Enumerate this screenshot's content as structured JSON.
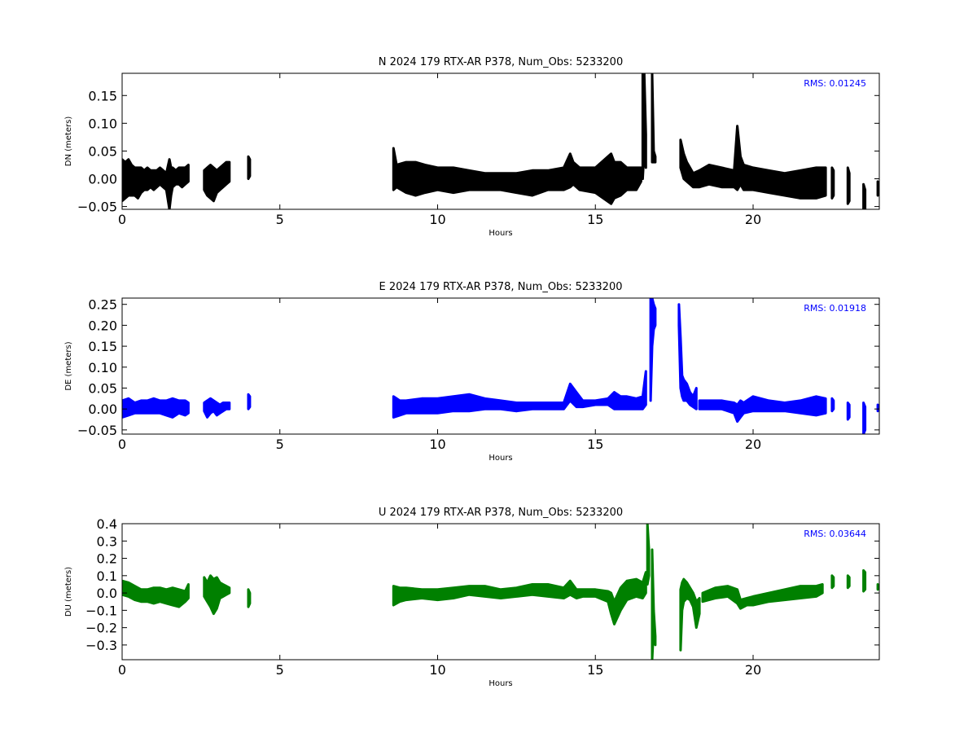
{
  "chart_data": [
    {
      "type": "line",
      "title": "N 2024 179 RTX-AR  P378, Num_Obs: 5233200",
      "xlabel": "Hours",
      "ylabel": "DN (meters)",
      "xlim": [
        0,
        24
      ],
      "ylim": [
        -0.055,
        0.19
      ],
      "xticks": [
        0,
        5,
        10,
        15,
        20
      ],
      "yticks": [
        -0.05,
        0.0,
        0.05,
        0.1,
        0.15
      ],
      "ytick_labels": [
        "−0.05",
        "0.00",
        "0.05",
        "0.10",
        "0.15"
      ],
      "rms_label": "RMS:  0.01245",
      "color": "#000000",
      "series": [
        {
          "x": [
            0.0,
            0.1,
            0.2,
            0.3,
            0.4,
            0.5,
            0.6,
            0.7,
            0.8,
            0.9,
            1.0,
            1.1,
            1.2,
            1.3,
            1.4,
            1.5,
            1.55,
            1.6,
            1.7,
            1.8,
            1.9,
            2.0,
            2.1
          ],
          "low": [
            -0.04,
            -0.035,
            -0.03,
            -0.03,
            -0.03,
            -0.035,
            -0.025,
            -0.02,
            -0.02,
            -0.015,
            -0.02,
            -0.015,
            -0.01,
            -0.015,
            -0.02,
            -0.055,
            -0.03,
            -0.015,
            -0.01,
            -0.01,
            -0.015,
            -0.01,
            -0.005
          ],
          "high": [
            0.035,
            0.03,
            0.035,
            0.025,
            0.02,
            0.02,
            0.02,
            0.015,
            0.02,
            0.015,
            0.015,
            0.015,
            0.02,
            0.015,
            0.01,
            0.035,
            0.02,
            0.02,
            0.015,
            0.02,
            0.02,
            0.02,
            0.025
          ]
        },
        {
          "x": [
            2.6,
            2.7,
            2.8,
            2.9,
            3.0,
            3.1,
            3.2,
            3.3,
            3.4
          ],
          "low": [
            -0.02,
            -0.03,
            -0.035,
            -0.04,
            -0.025,
            -0.02,
            -0.015,
            -0.01,
            -0.005
          ],
          "high": [
            0.015,
            0.02,
            0.025,
            0.02,
            0.015,
            0.02,
            0.025,
            0.03,
            0.03
          ]
        },
        {
          "x": [
            4.0,
            4.05
          ],
          "low": [
            0.0,
            0.005
          ],
          "high": [
            0.04,
            0.035
          ]
        },
        {
          "x": [
            8.6,
            8.7,
            9.0,
            9.3,
            9.6,
            10.0,
            10.5,
            11.0,
            11.5,
            12.0,
            12.5,
            13.0,
            13.5,
            14.0,
            14.2,
            14.3,
            14.5,
            15.0,
            15.5,
            15.6,
            15.8,
            16.0,
            16.3,
            16.45
          ],
          "low": [
            -0.02,
            -0.015,
            -0.025,
            -0.03,
            -0.025,
            -0.02,
            -0.025,
            -0.02,
            -0.02,
            -0.02,
            -0.025,
            -0.03,
            -0.02,
            -0.02,
            -0.015,
            -0.01,
            -0.02,
            -0.025,
            -0.045,
            -0.035,
            -0.03,
            -0.02,
            -0.02,
            -0.005
          ],
          "high": [
            0.055,
            0.025,
            0.03,
            0.03,
            0.025,
            0.02,
            0.02,
            0.015,
            0.01,
            0.01,
            0.01,
            0.015,
            0.015,
            0.02,
            0.045,
            0.03,
            0.02,
            0.02,
            0.045,
            0.03,
            0.03,
            0.02,
            0.02,
            0.02
          ]
        },
        {
          "x": [
            16.5,
            16.55,
            16.6
          ],
          "low": [
            0.0,
            0.05,
            0.02
          ],
          "high": [
            0.19,
            0.19,
            0.08
          ]
        },
        {
          "x": [
            16.8,
            16.85,
            16.9
          ],
          "low": [
            0.03,
            0.03,
            0.03
          ],
          "high": [
            0.19,
            0.05,
            0.04
          ]
        },
        {
          "x": [
            17.7,
            17.8,
            17.9,
            18.0,
            18.1,
            18.3,
            18.6,
            19.0,
            19.4,
            19.5,
            19.6,
            19.7,
            20.0,
            20.5,
            21.0,
            21.5,
            22.0,
            22.3
          ],
          "low": [
            0.02,
            0.0,
            -0.005,
            -0.01,
            -0.015,
            -0.015,
            -0.01,
            -0.015,
            -0.015,
            -0.02,
            -0.01,
            -0.02,
            -0.02,
            -0.025,
            -0.03,
            -0.035,
            -0.035,
            -0.03
          ],
          "high": [
            0.07,
            0.045,
            0.03,
            0.02,
            0.01,
            0.015,
            0.025,
            0.02,
            0.015,
            0.095,
            0.04,
            0.025,
            0.02,
            0.015,
            0.01,
            0.015,
            0.02,
            0.02
          ]
        },
        {
          "x": [
            22.5,
            22.55
          ],
          "low": [
            -0.035,
            -0.03
          ],
          "high": [
            0.02,
            0.015
          ]
        },
        {
          "x": [
            23.0,
            23.05
          ],
          "low": [
            -0.045,
            -0.04
          ],
          "high": [
            0.02,
            0.01
          ]
        },
        {
          "x": [
            23.5,
            23.55
          ],
          "low": [
            -0.055,
            -0.055
          ],
          "high": [
            -0.01,
            -0.02
          ]
        },
        {
          "x": [
            23.95,
            24.0
          ],
          "low": [
            -0.03,
            -0.025
          ],
          "high": [
            -0.005,
            -0.01
          ]
        }
      ]
    },
    {
      "type": "line",
      "title": "E 2024 179 RTX-AR  P378, Num_Obs: 5233200",
      "xlabel": "Hours",
      "ylabel": "DE (meters)",
      "xlim": [
        0,
        24
      ],
      "ylim": [
        -0.06,
        0.265
      ],
      "xticks": [
        0,
        5,
        10,
        15,
        20
      ],
      "yticks": [
        -0.05,
        0.0,
        0.05,
        0.1,
        0.15,
        0.2,
        0.25
      ],
      "ytick_labels": [
        "−0.05",
        "0.00",
        "0.05",
        "0.10",
        "0.15",
        "0.20",
        "0.25"
      ],
      "rms_label": "RMS:  0.01918",
      "color": "#0000ff",
      "series": [
        {
          "x": [
            0.0,
            0.2,
            0.4,
            0.6,
            0.8,
            1.0,
            1.2,
            1.4,
            1.6,
            1.8,
            2.0,
            2.1
          ],
          "low": [
            -0.02,
            -0.015,
            -0.01,
            -0.01,
            -0.01,
            -0.01,
            -0.01,
            -0.015,
            -0.02,
            -0.01,
            -0.015,
            -0.01
          ],
          "high": [
            0.02,
            0.025,
            0.015,
            0.02,
            0.02,
            0.025,
            0.02,
            0.02,
            0.025,
            0.02,
            0.02,
            0.015
          ]
        },
        {
          "x": [
            2.6,
            2.7,
            2.8,
            2.9,
            3.0,
            3.1,
            3.2,
            3.3,
            3.4
          ],
          "low": [
            -0.005,
            -0.02,
            -0.01,
            -0.005,
            -0.015,
            -0.01,
            -0.005,
            0.0,
            0.0
          ],
          "high": [
            0.015,
            0.02,
            0.025,
            0.02,
            0.015,
            0.01,
            0.015,
            0.015,
            0.015
          ]
        },
        {
          "x": [
            4.0,
            4.05
          ],
          "low": [
            0.0,
            0.005
          ],
          "high": [
            0.035,
            0.03
          ]
        },
        {
          "x": [
            8.6,
            8.8,
            9.0,
            9.5,
            10.0,
            10.5,
            11.0,
            11.5,
            12.0,
            12.5,
            13.0,
            13.5,
            14.0,
            14.2,
            14.4,
            14.6,
            15.0,
            15.4,
            15.6,
            15.8,
            16.0,
            16.3,
            16.5,
            16.6
          ],
          "low": [
            -0.02,
            -0.015,
            -0.01,
            -0.01,
            -0.01,
            -0.005,
            -0.005,
            0.0,
            0.0,
            -0.005,
            0.0,
            0.0,
            0.0,
            0.02,
            0.005,
            0.005,
            0.01,
            0.01,
            0.0,
            0.0,
            0.0,
            0.0,
            0.0,
            0.01
          ],
          "high": [
            0.03,
            0.02,
            0.02,
            0.025,
            0.025,
            0.03,
            0.035,
            0.025,
            0.02,
            0.015,
            0.015,
            0.015,
            0.015,
            0.06,
            0.04,
            0.02,
            0.02,
            0.025,
            0.04,
            0.03,
            0.03,
            0.025,
            0.03,
            0.09
          ]
        },
        {
          "x": [
            16.75,
            16.8,
            16.85,
            16.9
          ],
          "low": [
            0.02,
            0.15,
            0.19,
            0.2
          ],
          "high": [
            0.265,
            0.265,
            0.25,
            0.24
          ]
        },
        {
          "x": [
            17.65,
            17.7,
            17.75,
            17.8,
            17.9,
            18.0,
            18.1,
            18.2
          ],
          "low": [
            0.2,
            0.05,
            0.03,
            0.02,
            0.02,
            0.01,
            0.005,
            0.0
          ],
          "high": [
            0.25,
            0.17,
            0.08,
            0.07,
            0.06,
            0.04,
            0.03,
            0.05
          ]
        },
        {
          "x": [
            18.3,
            18.6,
            19.0,
            19.4,
            19.5,
            19.6,
            19.7,
            20.0,
            20.5,
            21.0,
            21.5,
            22.0,
            22.3
          ],
          "low": [
            0.0,
            0.0,
            0.0,
            -0.01,
            -0.03,
            -0.02,
            -0.01,
            -0.005,
            -0.005,
            -0.005,
            -0.01,
            -0.015,
            -0.01
          ],
          "high": [
            0.02,
            0.02,
            0.02,
            0.015,
            0.01,
            0.02,
            0.015,
            0.03,
            0.02,
            0.015,
            0.02,
            0.03,
            0.025
          ]
        },
        {
          "x": [
            22.5,
            22.55
          ],
          "low": [
            -0.005,
            0.0
          ],
          "high": [
            0.025,
            0.02
          ]
        },
        {
          "x": [
            23.0,
            23.05
          ],
          "low": [
            -0.025,
            -0.02
          ],
          "high": [
            0.015,
            0.01
          ]
        },
        {
          "x": [
            23.5,
            23.55
          ],
          "low": [
            -0.06,
            -0.05
          ],
          "high": [
            0.015,
            0.005
          ]
        },
        {
          "x": [
            23.95,
            24.0
          ],
          "low": [
            -0.005,
            0.0
          ],
          "high": [
            0.01,
            0.005
          ]
        }
      ]
    },
    {
      "type": "line",
      "title": "U 2024 179 RTX-AR  P378, Num_Obs: 5233200",
      "xlabel": "Hours",
      "ylabel": "DU (meters)",
      "xlim": [
        0,
        24
      ],
      "ylim": [
        -0.385,
        0.4
      ],
      "xticks": [
        0,
        5,
        10,
        15,
        20
      ],
      "yticks": [
        -0.3,
        -0.2,
        -0.1,
        0.0,
        0.1,
        0.2,
        0.3,
        0.4
      ],
      "ytick_labels": [
        "−0.3",
        "−0.2",
        "−0.1",
        "0.0",
        "0.1",
        "0.2",
        "0.3",
        "0.4"
      ],
      "rms_label": "RMS:  0.03644",
      "color": "#008000",
      "series": [
        {
          "x": [
            0.0,
            0.2,
            0.4,
            0.6,
            0.8,
            1.0,
            1.2,
            1.4,
            1.6,
            1.8,
            2.0,
            2.1
          ],
          "low": [
            -0.01,
            -0.02,
            -0.04,
            -0.05,
            -0.05,
            -0.06,
            -0.05,
            -0.06,
            -0.07,
            -0.08,
            -0.05,
            -0.03
          ],
          "high": [
            0.07,
            0.06,
            0.04,
            0.02,
            0.02,
            0.03,
            0.03,
            0.02,
            0.03,
            0.02,
            0.01,
            0.05
          ]
        },
        {
          "x": [
            2.6,
            2.7,
            2.8,
            2.9,
            3.0,
            3.1,
            3.2,
            3.3,
            3.4
          ],
          "low": [
            -0.02,
            -0.05,
            -0.08,
            -0.12,
            -0.09,
            -0.03,
            -0.02,
            -0.01,
            0.0
          ],
          "high": [
            0.09,
            0.06,
            0.1,
            0.08,
            0.09,
            0.06,
            0.05,
            0.04,
            0.03
          ]
        },
        {
          "x": [
            4.0,
            4.05
          ],
          "low": [
            -0.08,
            -0.06
          ],
          "high": [
            0.02,
            0.0
          ]
        },
        {
          "x": [
            8.6,
            8.8,
            9.0,
            9.5,
            10.0,
            10.5,
            11.0,
            11.5,
            12.0,
            12.5,
            13.0,
            13.5,
            14.0,
            14.2,
            14.4,
            14.6,
            15.0,
            15.4,
            15.5,
            15.6,
            15.8,
            16.0,
            16.3,
            16.5,
            16.6
          ],
          "low": [
            -0.07,
            -0.05,
            -0.04,
            -0.03,
            -0.04,
            -0.03,
            -0.01,
            -0.02,
            -0.03,
            -0.02,
            -0.01,
            -0.02,
            -0.03,
            -0.01,
            -0.03,
            -0.02,
            -0.02,
            -0.05,
            -0.12,
            -0.18,
            -0.1,
            -0.04,
            -0.02,
            -0.03,
            0.0
          ],
          "high": [
            0.04,
            0.03,
            0.03,
            0.02,
            0.02,
            0.03,
            0.04,
            0.04,
            0.02,
            0.03,
            0.05,
            0.05,
            0.03,
            0.07,
            0.02,
            0.02,
            0.02,
            0.01,
            0.0,
            -0.05,
            0.03,
            0.07,
            0.08,
            0.06,
            0.12
          ]
        },
        {
          "x": [
            16.65,
            16.7
          ],
          "low": [
            0.05,
            0.1
          ],
          "high": [
            0.4,
            0.25
          ]
        },
        {
          "x": [
            16.8,
            16.85,
            16.9
          ],
          "low": [
            -0.385,
            -0.2,
            -0.3
          ],
          "high": [
            0.25,
            -0.1,
            -0.25
          ]
        },
        {
          "x": [
            17.7,
            17.75,
            17.8,
            17.9,
            18.0,
            18.1,
            18.2,
            18.3
          ],
          "low": [
            -0.33,
            -0.1,
            -0.05,
            -0.03,
            -0.04,
            -0.08,
            -0.2,
            -0.12
          ],
          "high": [
            0.02,
            0.06,
            0.08,
            0.06,
            0.03,
            0.0,
            -0.05,
            -0.03
          ]
        },
        {
          "x": [
            18.4,
            18.8,
            19.2,
            19.5,
            19.6,
            19.8,
            20.0,
            20.5,
            21.0,
            21.5,
            22.0,
            22.2
          ],
          "low": [
            -0.05,
            -0.03,
            -0.02,
            -0.06,
            -0.09,
            -0.07,
            -0.07,
            -0.05,
            -0.04,
            -0.03,
            -0.02,
            0.0
          ],
          "high": [
            0.0,
            0.03,
            0.04,
            0.02,
            -0.04,
            -0.03,
            -0.02,
            0.0,
            0.02,
            0.04,
            0.04,
            0.05
          ]
        },
        {
          "x": [
            22.5,
            22.55
          ],
          "low": [
            0.03,
            0.04
          ],
          "high": [
            0.1,
            0.09
          ]
        },
        {
          "x": [
            23.0,
            23.05
          ],
          "low": [
            0.03,
            0.04
          ],
          "high": [
            0.1,
            0.09
          ]
        },
        {
          "x": [
            23.5,
            23.55
          ],
          "low": [
            0.01,
            0.02
          ],
          "high": [
            0.13,
            0.12
          ]
        },
        {
          "x": [
            23.95,
            24.0
          ],
          "low": [
            0.02,
            0.03
          ],
          "high": [
            0.05,
            0.04
          ]
        }
      ]
    }
  ]
}
